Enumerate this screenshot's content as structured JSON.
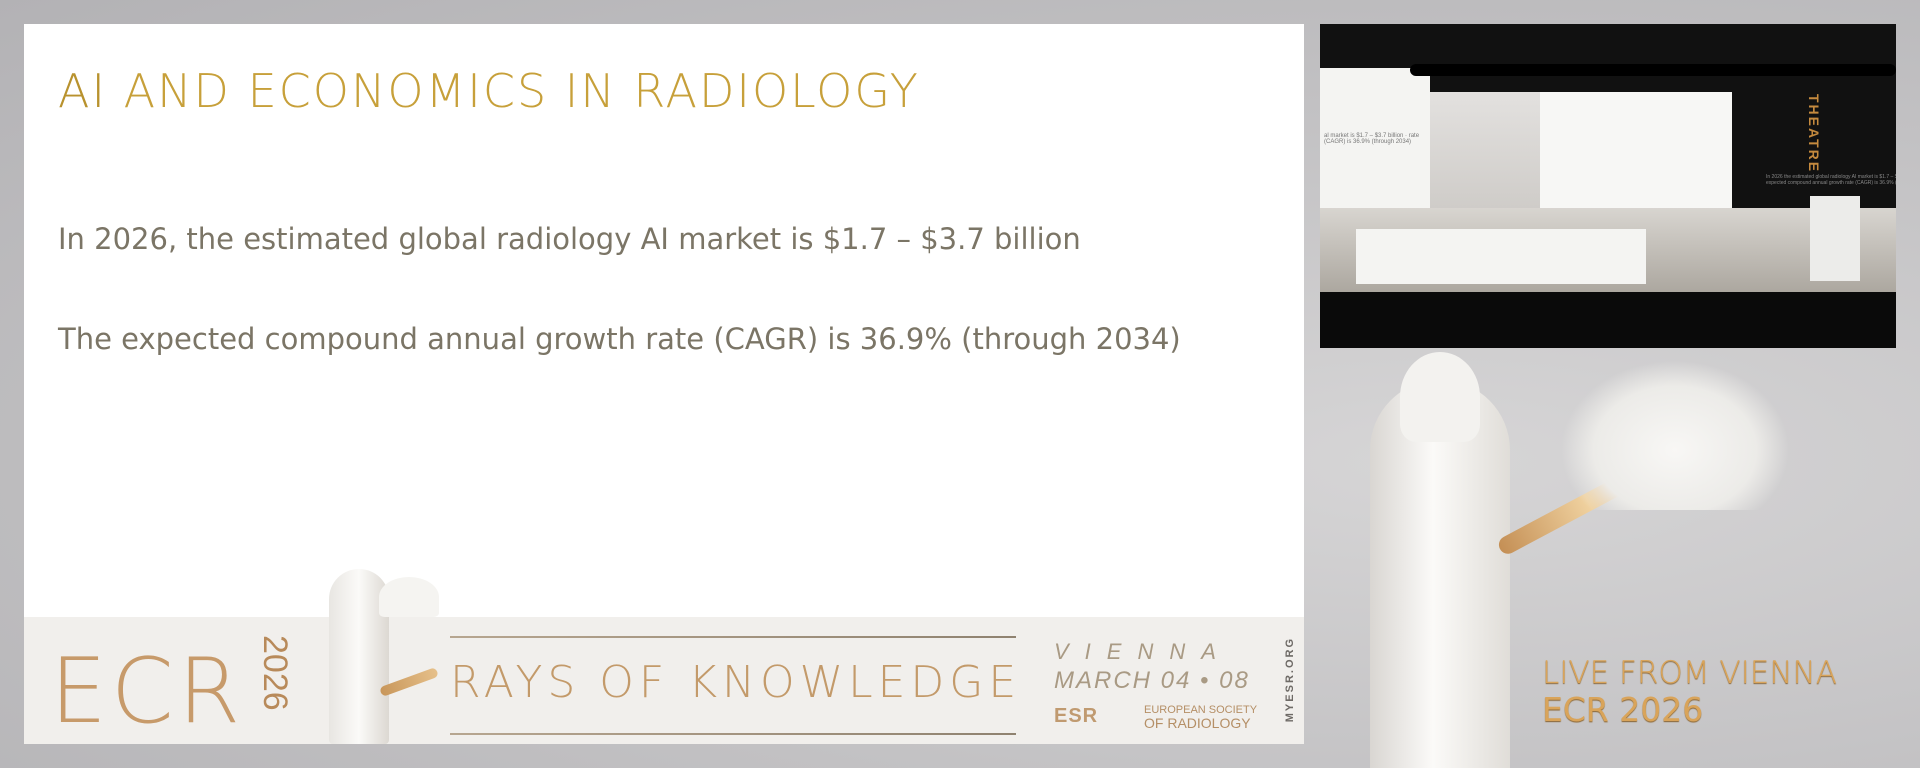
{
  "slide": {
    "title_prefix": "AI",
    "title_rest": " AND ECONOMICS IN RADIOLOGY",
    "bullets": [
      "In 2026, the estimated global radiology AI market is $1.7 – $3.7 billion",
      "The expected compound annual growth rate (CAGR) is 36.9% (through 2034)"
    ],
    "footer": {
      "logo": "ECR",
      "year": "2026",
      "tagline": "RAYS OF KNOWLEDGE",
      "city": "VIENNA",
      "dates": "MARCH 04 • 08",
      "society_logo": "ESR",
      "society_line1": "EUROPEAN SOCIETY",
      "society_line2": "OF RADIOLOGY",
      "website": "MYESR.ORG"
    }
  },
  "video": {
    "stage_sign": "THEATRE",
    "screen_left_text": "al market is $1.7 – $3.7 billion · rate (CAGR) is 36.9% (through 2034)",
    "screen_right_text": "In 2026 the estimated global radiology AI market is $1.7 – $3.7 billion · The expected compound annual growth rate (CAGR) is 36.9% (through 2034)"
  },
  "overlay": {
    "line1": "LIVE FROM VIENNA",
    "line2": "ECR 2026"
  },
  "colors": {
    "gold": "#c7a03a",
    "body_text": "#7b7566",
    "background": "#c2c1c3"
  }
}
